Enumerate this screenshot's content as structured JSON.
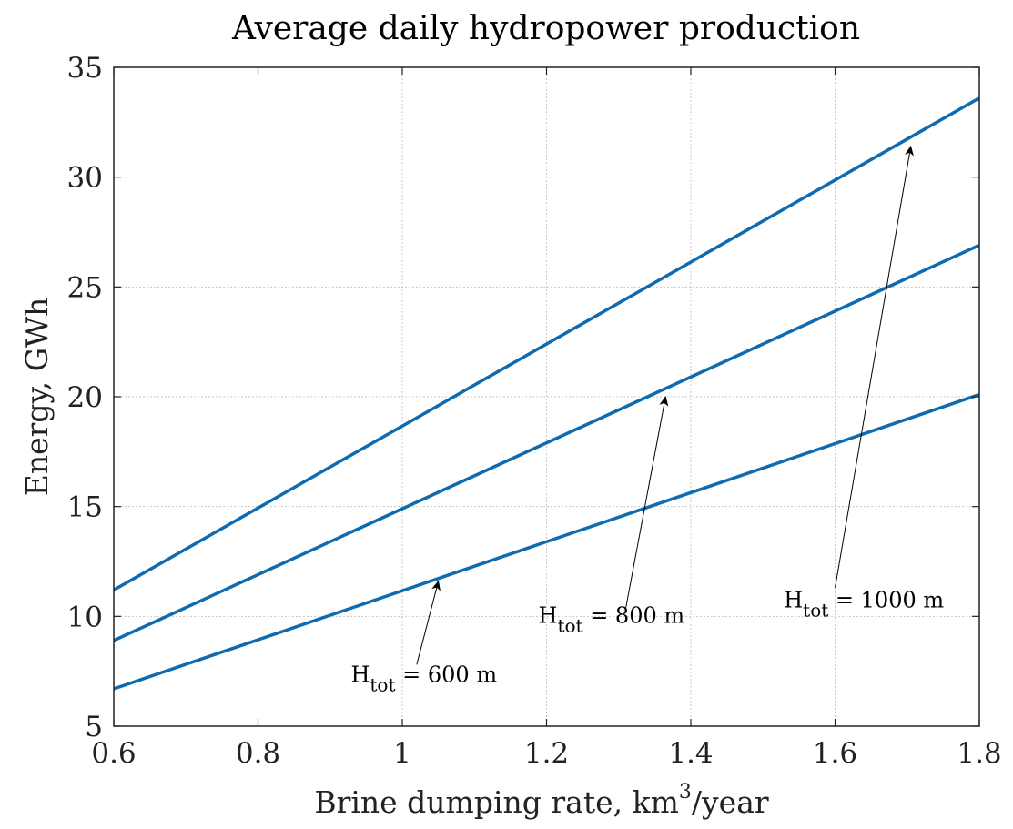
{
  "chart_data": {
    "type": "line",
    "title": "Average daily hydropower production",
    "xlabel": "Brine dumping rate, km",
    "xlabel_sup": "3",
    "xlabel_tail": "/year",
    "ylabel": "Energy, GWh",
    "xlim": [
      0.6,
      1.8
    ],
    "ylim": [
      5,
      35
    ],
    "xticks": [
      0.6,
      0.8,
      1,
      1.2,
      1.4,
      1.6,
      1.8
    ],
    "yticks": [
      5,
      10,
      15,
      20,
      25,
      30,
      35
    ],
    "xtick_labels": [
      "0.6",
      "0.8",
      "1",
      "1.2",
      "1.4",
      "1.6",
      "1.8"
    ],
    "ytick_labels": [
      "5",
      "10",
      "15",
      "20",
      "25",
      "30",
      "35"
    ],
    "grid": true,
    "series": [
      {
        "x": [
          0.6,
          1.8
        ],
        "y": [
          6.7,
          20.1
        ]
      },
      {
        "x": [
          0.6,
          1.8
        ],
        "y": [
          8.9,
          26.9
        ]
      },
      {
        "x": [
          0.6,
          1.8
        ],
        "y": [
          11.2,
          33.6
        ]
      }
    ],
    "annotations": [
      {
        "main": "H",
        "sub": "tot",
        "rest": " = 600 m",
        "text_at": [
          1.03,
          7.0
        ],
        "arrow_from": [
          1.02,
          7.8
        ],
        "arrow_to": [
          1.05,
          11.6
        ]
      },
      {
        "main": "H",
        "sub": "tot",
        "rest": " = 800 m",
        "text_at": [
          1.29,
          9.7
        ],
        "arrow_from": [
          1.31,
          10.4
        ],
        "arrow_to": [
          1.365,
          20.0
        ]
      },
      {
        "main": "H",
        "sub": "tot",
        "rest": " = 1000 m",
        "text_at": [
          1.64,
          10.4
        ],
        "arrow_from": [
          1.6,
          11.3
        ],
        "arrow_to": [
          1.705,
          31.4
        ]
      }
    ],
    "colors": {
      "series": "#0f6bb0",
      "grid": "#c8c8c8",
      "frame": "#222222"
    }
  }
}
